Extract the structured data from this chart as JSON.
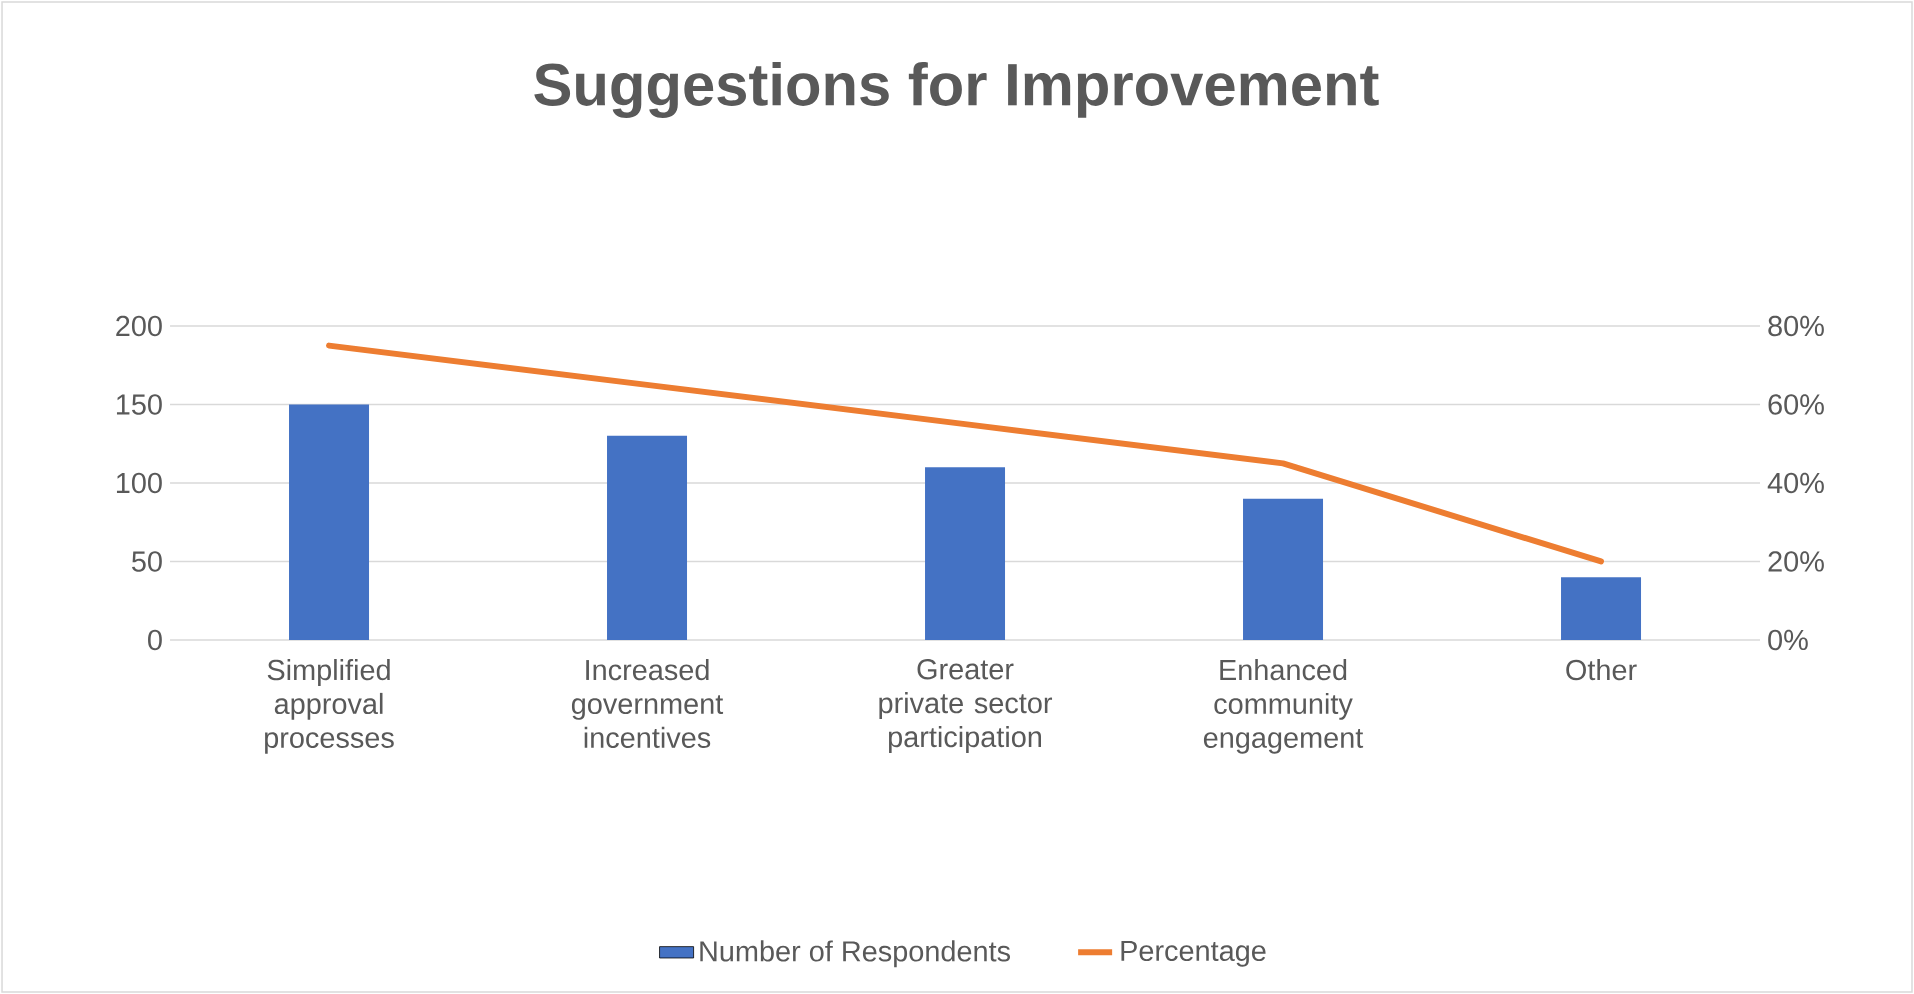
{
  "chart_data": {
    "type": "bar",
    "title": "Suggestions for Improvement",
    "categories": [
      "Simplified approval processes",
      "Increased government incentives",
      "Greater private sector participation",
      "Enhanced community engagement",
      "Other"
    ],
    "series": [
      {
        "name": "Number of Respondents",
        "color": "#4472c4",
        "values": [
          150,
          130,
          110,
          90,
          40
        ]
      },
      {
        "name": "Percentage",
        "type": "line",
        "axis": "y2",
        "color": "#ed7d31",
        "values": [
          75,
          65,
          55,
          45,
          20
        ]
      }
    ],
    "ylim": [
      0,
      200
    ],
    "yticks": [
      0,
      50,
      100,
      150,
      200
    ],
    "y2lim": [
      0,
      80
    ],
    "y2ticks": [
      {
        "value": 0,
        "label": "0%"
      },
      {
        "value": 20,
        "label": "20%"
      },
      {
        "value": 40,
        "label": "40%"
      },
      {
        "value": 60,
        "label": "60%"
      },
      {
        "value": 80,
        "label": "80%"
      }
    ],
    "grid": "y",
    "legend": "bottom",
    "marker": "none",
    "line_style": "solid"
  }
}
